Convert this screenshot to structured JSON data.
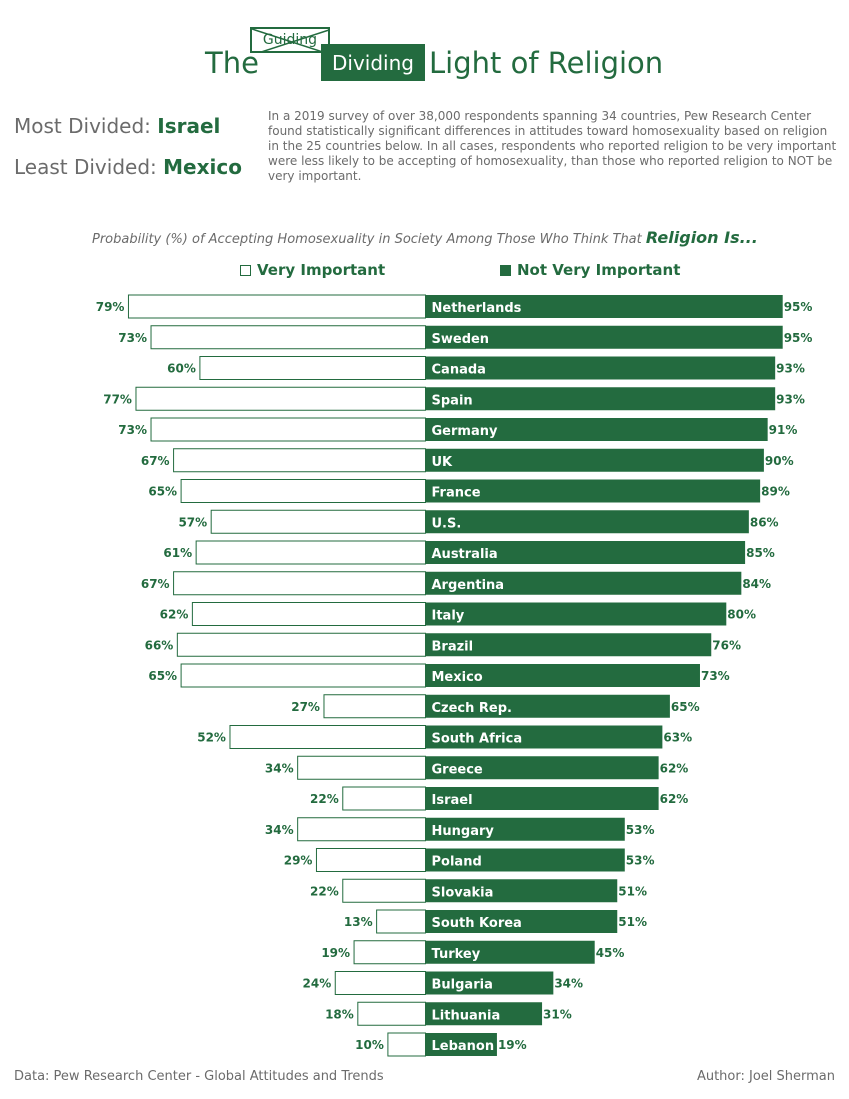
{
  "header": {
    "title_the": "The",
    "title_guiding": "Guiding",
    "title_dividing": "Dividing",
    "title_rest": "Light of Religion"
  },
  "summary": {
    "most_label": "Most Divided:",
    "most_value": "Israel",
    "least_label": "Least Divided:",
    "least_value": "Mexico"
  },
  "intro": "In a 2019 survey of over 38,000 respondents spanning 34 countries, Pew Research Center found statistically significant differences in attitudes toward homosexuality based on religion in the 25 countries below.  In all cases, respondents who reported religion to be very important were less likely to be accepting of homosexuality, than those who reported religion to NOT be very important.",
  "colors": {
    "accent": "#236b3f",
    "text_gray": "#6b6b6b",
    "background": "#ffffff"
  },
  "footer": {
    "source": "Data: Pew Research Center - Global Attitudes and Trends",
    "author": "Author: Joel Sherman"
  },
  "chart_data": {
    "type": "bar",
    "orientation": "diverging-horizontal",
    "title": "Probability (%) of Accepting Homosexuality in Society Among Those Who Think That",
    "title_emphasis": "Religion Is...",
    "unit": "%",
    "xlim": [
      0,
      100
    ],
    "grid": false,
    "legend_placement": "top-center",
    "categories": [
      "Netherlands",
      "Sweden",
      "Canada",
      "Spain",
      "Germany",
      "UK",
      "France",
      "U.S.",
      "Australia",
      "Argentina",
      "Italy",
      "Brazil",
      "Mexico",
      "Czech Rep.",
      "South Africa",
      "Greece",
      "Israel",
      "Hungary",
      "Poland",
      "Slovakia",
      "South Korea",
      "Turkey",
      "Bulgaria",
      "Lithuania",
      "Lebanon"
    ],
    "series": [
      {
        "name": "Very Important",
        "style": "outline",
        "side": "left",
        "values": [
          79,
          73,
          60,
          77,
          73,
          67,
          65,
          57,
          61,
          67,
          62,
          66,
          65,
          27,
          52,
          34,
          22,
          34,
          29,
          22,
          13,
          19,
          24,
          18,
          10
        ]
      },
      {
        "name": "Not Very Important",
        "style": "filled",
        "side": "right",
        "values": [
          95,
          95,
          93,
          93,
          91,
          90,
          89,
          86,
          85,
          84,
          80,
          76,
          73,
          65,
          63,
          62,
          62,
          53,
          53,
          51,
          51,
          45,
          34,
          31,
          19
        ]
      }
    ]
  }
}
